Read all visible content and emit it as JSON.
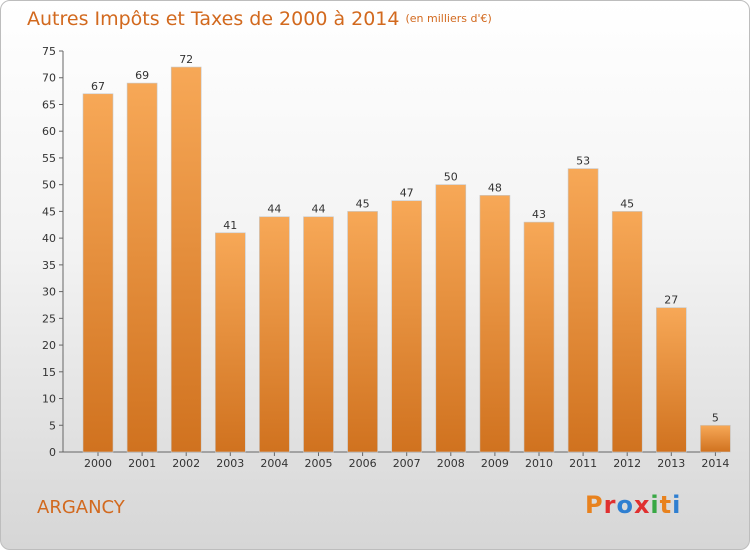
{
  "header": {
    "title": "Autres Impôts et Taxes de 2000 à 2014",
    "subtitle": "(en milliers d'€)"
  },
  "footer": {
    "place": "ARGANCY",
    "logo_text": "Proxiti",
    "logo_colors": [
      "#e8821e",
      "#e03030",
      "#2f7fd1",
      "#e03030",
      "#39a845",
      "#e8821e",
      "#2f7fd1"
    ]
  },
  "chart_data": {
    "type": "bar",
    "title": "Autres Impôts et Taxes de 2000 à 2014",
    "xlabel": "",
    "ylabel": "",
    "categories": [
      "2000",
      "2001",
      "2002",
      "2003",
      "2004",
      "2005",
      "2006",
      "2007",
      "2008",
      "2009",
      "2010",
      "2011",
      "2012",
      "2013",
      "2014"
    ],
    "values": [
      67,
      69,
      72,
      41,
      44,
      44,
      45,
      47,
      50,
      48,
      43,
      53,
      45,
      27,
      5
    ],
    "ylim": [
      0,
      75
    ],
    "yticks": [
      0,
      5,
      10,
      15,
      20,
      25,
      30,
      35,
      40,
      45,
      50,
      55,
      60,
      65,
      70,
      75
    ],
    "bar_color_top": "#f7a857",
    "bar_color_bottom": "#d0721f",
    "grid": false
  }
}
